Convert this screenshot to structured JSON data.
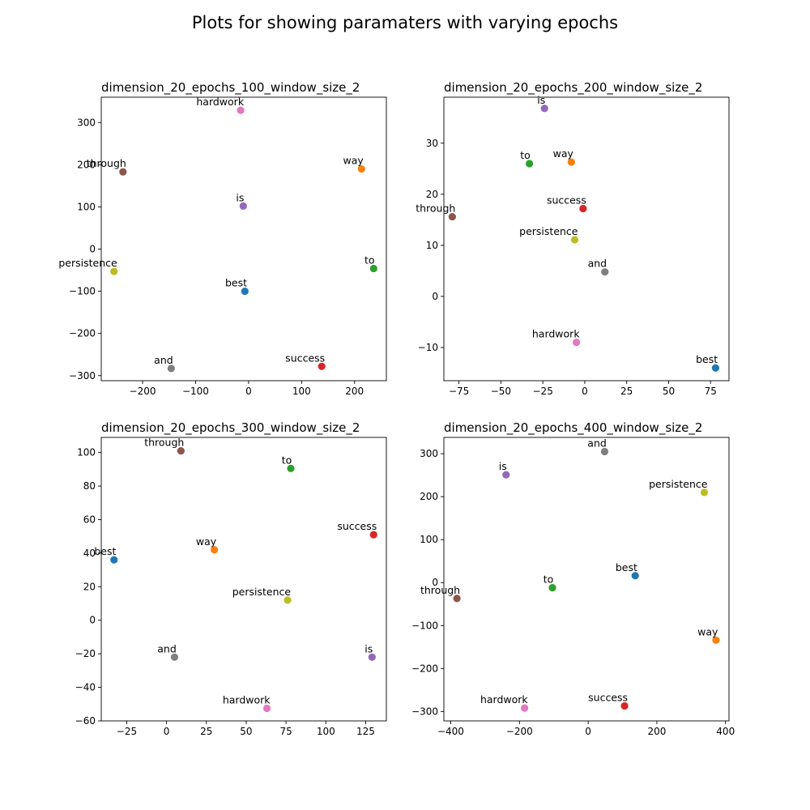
{
  "figure": {
    "title": "Plots for showing paramaters with varying epochs"
  },
  "colors": {
    "best": "#1f77b4",
    "way": "#ff7f0e",
    "to": "#2ca02c",
    "success": "#d62728",
    "is": "#9467bd",
    "through": "#8c564b",
    "hardwork": "#e377c2",
    "and": "#7f7f7f",
    "persistence": "#bcbd22"
  },
  "chart_data": [
    {
      "type": "scatter",
      "title": "dimension_20_epochs_100_window_size_2",
      "xlim": [
        -278,
        260
      ],
      "ylim": [
        -312,
        360
      ],
      "xticks": [
        -200,
        -100,
        0,
        100,
        200
      ],
      "yticks": [
        -300,
        -200,
        -100,
        0,
        100,
        200,
        300
      ],
      "grid": false,
      "points": [
        {
          "label": "best",
          "x": -7,
          "y": -100
        },
        {
          "label": "way",
          "x": 213,
          "y": 190
        },
        {
          "label": "to",
          "x": 236,
          "y": -46
        },
        {
          "label": "success",
          "x": 138,
          "y": -278
        },
        {
          "label": "is",
          "x": -10,
          "y": 102
        },
        {
          "label": "through",
          "x": -237,
          "y": 183
        },
        {
          "label": "hardwork",
          "x": -15,
          "y": 329
        },
        {
          "label": "and",
          "x": -146,
          "y": -283
        },
        {
          "label": "persistence",
          "x": -254,
          "y": -53
        }
      ]
    },
    {
      "type": "scatter",
      "title": "dimension_20_epochs_200_window_size_2",
      "xlim": [
        -84,
        86
      ],
      "ylim": [
        -16.5,
        39
      ],
      "xticks": [
        -75,
        -50,
        -25,
        0,
        25,
        50,
        75
      ],
      "yticks": [
        -10,
        0,
        10,
        20,
        30
      ],
      "grid": false,
      "points": [
        {
          "label": "best",
          "x": 78,
          "y": -14
        },
        {
          "label": "way",
          "x": -8,
          "y": 26.3
        },
        {
          "label": "to",
          "x": -33,
          "y": 26
        },
        {
          "label": "success",
          "x": -1,
          "y": 17.2
        },
        {
          "label": "is",
          "x": -24,
          "y": 36.8
        },
        {
          "label": "through",
          "x": -79,
          "y": 15.6
        },
        {
          "label": "hardwork",
          "x": -5,
          "y": -9
        },
        {
          "label": "and",
          "x": 12,
          "y": 4.8
        },
        {
          "label": "persistence",
          "x": -6,
          "y": 11.1
        }
      ]
    },
    {
      "type": "scatter",
      "title": "dimension_20_epochs_300_window_size_2",
      "xlim": [
        -41,
        138
      ],
      "ylim": [
        -60,
        109
      ],
      "xticks": [
        -25,
        0,
        25,
        50,
        75,
        100,
        125
      ],
      "yticks": [
        -60,
        -40,
        -20,
        0,
        20,
        40,
        60,
        80,
        100
      ],
      "grid": false,
      "points": [
        {
          "label": "best",
          "x": -33,
          "y": 36
        },
        {
          "label": "way",
          "x": 30,
          "y": 42
        },
        {
          "label": "to",
          "x": 78,
          "y": 90.5
        },
        {
          "label": "success",
          "x": 130,
          "y": 51
        },
        {
          "label": "is",
          "x": 129,
          "y": -22
        },
        {
          "label": "through",
          "x": 9,
          "y": 101
        },
        {
          "label": "hardwork",
          "x": 63,
          "y": -52.5
        },
        {
          "label": "and",
          "x": 5,
          "y": -22
        },
        {
          "label": "persistence",
          "x": 76,
          "y": 12
        }
      ]
    },
    {
      "type": "scatter",
      "title": "dimension_20_epochs_400_window_size_2",
      "xlim": [
        -420,
        410
      ],
      "ylim": [
        -322,
        338
      ],
      "xticks": [
        -400,
        -200,
        0,
        200,
        400
      ],
      "yticks": [
        -300,
        -200,
        -100,
        0,
        100,
        200,
        300
      ],
      "grid": false,
      "points": [
        {
          "label": "best",
          "x": 137,
          "y": 16
        },
        {
          "label": "way",
          "x": 372,
          "y": -134
        },
        {
          "label": "to",
          "x": -104,
          "y": -12
        },
        {
          "label": "success",
          "x": 106,
          "y": -287
        },
        {
          "label": "is",
          "x": -239,
          "y": 251
        },
        {
          "label": "through",
          "x": -382,
          "y": -37
        },
        {
          "label": "hardwork",
          "x": -185,
          "y": -292
        },
        {
          "label": "and",
          "x": 48,
          "y": 305
        },
        {
          "label": "persistence",
          "x": 338,
          "y": 210
        }
      ]
    }
  ]
}
